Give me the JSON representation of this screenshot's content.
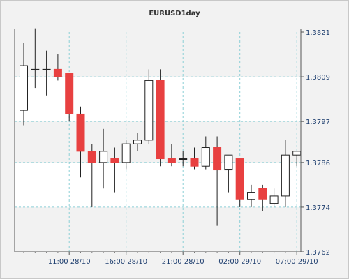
{
  "chart_data": {
    "type": "candlestick",
    "title": "EURUSD1day",
    "xlabel": "",
    "ylabel": "",
    "ylim": [
      1.3762,
      1.3821
    ],
    "y_ticks": [
      "1.3762",
      "1.3774",
      "1.3786",
      "1.3797",
      "1.3809",
      "1.3821"
    ],
    "x_ticks": [
      {
        "label": "11:00 28/10",
        "index": 4
      },
      {
        "label": "16:00 28/10",
        "index": 9
      },
      {
        "label": "21:00 28/10",
        "index": 14
      },
      {
        "label": "02:00 29/10",
        "index": 19
      },
      {
        "label": "07:00 29/10",
        "index": 24
      }
    ],
    "candles": [
      {
        "o": 1.38,
        "h": 1.3818,
        "l": 1.3796,
        "c": 1.3812
      },
      {
        "o": 1.3811,
        "h": 1.3822,
        "l": 1.3806,
        "c": 1.3811
      },
      {
        "o": 1.3811,
        "h": 1.3816,
        "l": 1.3804,
        "c": 1.3811
      },
      {
        "o": 1.3811,
        "h": 1.3815,
        "l": 1.3808,
        "c": 1.3809
      },
      {
        "o": 1.381,
        "h": 1.381,
        "l": 1.3797,
        "c": 1.3799
      },
      {
        "o": 1.3799,
        "h": 1.3801,
        "l": 1.3782,
        "c": 1.3789
      },
      {
        "o": 1.3789,
        "h": 1.3791,
        "l": 1.3774,
        "c": 1.3786
      },
      {
        "o": 1.3786,
        "h": 1.3795,
        "l": 1.3779,
        "c": 1.3789
      },
      {
        "o": 1.3787,
        "h": 1.379,
        "l": 1.3778,
        "c": 1.3786
      },
      {
        "o": 1.3786,
        "h": 1.3792,
        "l": 1.3784,
        "c": 1.3791
      },
      {
        "o": 1.3791,
        "h": 1.3794,
        "l": 1.3789,
        "c": 1.3792
      },
      {
        "o": 1.3792,
        "h": 1.3811,
        "l": 1.3791,
        "c": 1.3808
      },
      {
        "o": 1.3808,
        "h": 1.3811,
        "l": 1.3785,
        "c": 1.3787
      },
      {
        "o": 1.3787,
        "h": 1.3791,
        "l": 1.3785,
        "c": 1.3786
      },
      {
        "o": 1.3787,
        "h": 1.3789,
        "l": 1.3785,
        "c": 1.3787
      },
      {
        "o": 1.3787,
        "h": 1.379,
        "l": 1.3784,
        "c": 1.3785
      },
      {
        "o": 1.3785,
        "h": 1.3793,
        "l": 1.3784,
        "c": 1.379
      },
      {
        "o": 1.379,
        "h": 1.3793,
        "l": 1.3769,
        "c": 1.3784
      },
      {
        "o": 1.3784,
        "h": 1.3788,
        "l": 1.3778,
        "c": 1.3788
      },
      {
        "o": 1.3787,
        "h": 1.3787,
        "l": 1.3774,
        "c": 1.3776
      },
      {
        "o": 1.3776,
        "h": 1.378,
        "l": 1.3774,
        "c": 1.3778
      },
      {
        "o": 1.3779,
        "h": 1.378,
        "l": 1.3773,
        "c": 1.3776
      },
      {
        "o": 1.3775,
        "h": 1.3779,
        "l": 1.3774,
        "c": 1.3777
      },
      {
        "o": 1.3777,
        "h": 1.3792,
        "l": 1.3774,
        "c": 1.3788
      },
      {
        "o": 1.3788,
        "h": 1.3789,
        "l": 1.3785,
        "c": 1.3789
      }
    ],
    "colors": {
      "up_fill": "#ffffff",
      "down_fill": "#e84040",
      "wick": "#222222",
      "grid": "#8ccfd6",
      "band_light": "#ffffff",
      "band_dark": "#f2f2f2"
    },
    "grid": true,
    "legend": "none"
  }
}
